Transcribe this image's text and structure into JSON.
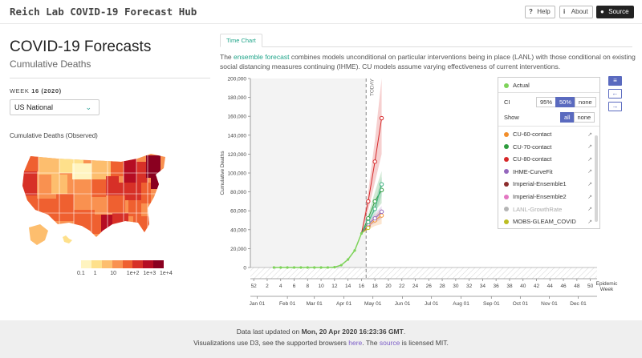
{
  "header": {
    "brand": "Reich Lab COVID-19 Forecast Hub",
    "help_label": "Help",
    "about_label": "About",
    "source_label": "Source",
    "help_icon": "question-icon",
    "about_icon": "info-icon",
    "source_icon": "github-icon"
  },
  "panel": {
    "title": "COVID-19 Forecasts",
    "subtitle": "Cumulative Deaths",
    "week_prefix": "WEEK",
    "week_number": "16",
    "week_year": "(2020)",
    "region_value": "US National",
    "map_title": "Cumulative Deaths (Observed)",
    "color_scale_labels": [
      "0.1",
      "1",
      "10",
      "1e+2",
      "1e+3",
      "1e+4"
    ],
    "color_scale_colors": [
      "#fff4c0",
      "#fee08b",
      "#fdbe6e",
      "#f99150",
      "#ef6030",
      "#d73027",
      "#b50d23",
      "#8a0020"
    ]
  },
  "tabs": [
    {
      "label": "Time Chart"
    }
  ],
  "description": {
    "pre": "The ",
    "link": "ensemble forecast",
    "post": " combines models unconditional on particular interventions being in place (LANL) with those conditional on existing social distancing measures continuing (IHME). CU models assume varying effectiveness of current interventions."
  },
  "legend": {
    "actual_label": "Actual",
    "actual_color": "#7ed35a",
    "ci_label": "CI",
    "ci_options": [
      "95%",
      "50%",
      "none"
    ],
    "ci_selected": "50%",
    "show_label": "Show",
    "show_options": [
      "all",
      "none"
    ],
    "show_selected": "all",
    "models": [
      {
        "name": "CU-60-contact",
        "color": "#f28e2b",
        "muted": false
      },
      {
        "name": "CU-70-contact",
        "color": "#2e9c3e",
        "muted": false
      },
      {
        "name": "CU-80-contact",
        "color": "#d62728",
        "muted": false
      },
      {
        "name": "IHME-CurveFit",
        "color": "#9467bd",
        "muted": false
      },
      {
        "name": "Imperial-Ensemble1",
        "color": "#8c2d2d",
        "muted": false
      },
      {
        "name": "Imperial-Ensemble2",
        "color": "#e377c2",
        "muted": false
      },
      {
        "name": "LANL-GrowthRate",
        "color": "#b5b5b5",
        "muted": true
      },
      {
        "name": "MOBS-GLEAM_COVID",
        "color": "#bcbd22",
        "muted": false
      }
    ]
  },
  "chart_data": {
    "type": "line",
    "ylabel": "Cumulative Deaths",
    "xlabel": "Epidemic Week",
    "today_label": "TODAY",
    "y_ticks": [
      0,
      20000,
      40000,
      60000,
      80000,
      100000,
      120000,
      140000,
      160000,
      180000,
      200000
    ],
    "y_tick_labels": [
      "0",
      "20,000",
      "40,000",
      "60,000",
      "80,000",
      "100,000",
      "120,000",
      "140,000",
      "160,000",
      "180,000",
      "200,000"
    ],
    "ylim": [
      0,
      200000
    ],
    "week_ticks": [
      "52",
      "2",
      "4",
      "6",
      "8",
      "10",
      "12",
      "14",
      "16",
      "18",
      "20",
      "22",
      "24",
      "26",
      "28",
      "30",
      "32",
      "34",
      "36",
      "38",
      "40",
      "42",
      "44",
      "46",
      "48",
      "50"
    ],
    "month_labels": [
      "Jan 01",
      "Feb 01",
      "Mar 01",
      "Apr 01",
      "May 01",
      "Jun 01",
      "Jul 01",
      "Aug 01",
      "Sep 01",
      "Oct 01",
      "Nov 01",
      "Dec 01"
    ],
    "month_positions": [
      0.5,
      5,
      9,
      13.4,
      17.7,
      22.1,
      26.4,
      30.8,
      35.3,
      39.6,
      43.9,
      48.2
    ],
    "xlim": [
      -0.5,
      51
    ],
    "today_week": 16.7,
    "actual": {
      "weeks": [
        3,
        4,
        5,
        6,
        7,
        8,
        9,
        10,
        11,
        12,
        13,
        14,
        15,
        16
      ],
      "values": [
        0,
        0,
        0,
        0,
        0,
        0,
        0,
        0,
        50,
        300,
        2500,
        8500,
        18000,
        36000
      ]
    },
    "forecasts": [
      {
        "model": "CU-80-contact",
        "weeks": [
          16,
          17,
          18,
          19
        ],
        "values": [
          36000,
          70000,
          112000,
          158000
        ],
        "lower": [
          36000,
          60000,
          90000,
          120000
        ],
        "upper": [
          36000,
          80000,
          135000,
          200000
        ]
      },
      {
        "model": "CU-70-contact",
        "weeks": [
          16,
          17,
          18,
          19
        ],
        "values": [
          36000,
          52000,
          70000,
          82000
        ],
        "lower": [
          36000,
          48000,
          60000,
          68000
        ],
        "upper": [
          36000,
          56000,
          80000,
          102000
        ]
      },
      {
        "model": "CU-60-contact",
        "weeks": [
          16,
          17,
          18,
          19
        ],
        "values": [
          36000,
          44000,
          50000,
          55000
        ],
        "lower": [
          36000,
          40000,
          44000,
          46000
        ],
        "upper": [
          36000,
          47000,
          55000,
          62000
        ]
      },
      {
        "model": "IHME-CurveFit",
        "weeks": [
          16,
          17,
          18,
          19
        ],
        "values": [
          36000,
          46000,
          52000,
          59000
        ],
        "lower": [
          36000,
          43000,
          47000,
          52000
        ],
        "upper": [
          36000,
          49000,
          57000,
          65000
        ]
      },
      {
        "model": "Imperial-Ensemble1",
        "weeks": [
          16,
          17
        ],
        "values": [
          36000,
          44000
        ],
        "lower": [
          36000,
          42000
        ],
        "upper": [
          36000,
          46000
        ]
      },
      {
        "model": "Imperial-Ensemble2",
        "weeks": [
          16,
          17
        ],
        "values": [
          36000,
          46000
        ],
        "lower": [
          36000,
          44000
        ],
        "upper": [
          36000,
          48000
        ]
      },
      {
        "model": "MOBS-GLEAM_COVID",
        "weeks": [
          16,
          17
        ],
        "values": [
          36000,
          42000
        ],
        "lower": [
          36000,
          40000
        ],
        "upper": [
          36000,
          44000
        ]
      },
      {
        "model": "Ensemble",
        "weeks": [
          16,
          17,
          18,
          19
        ],
        "values": [
          36000,
          48000,
          62000,
          88000
        ],
        "lower": [
          36000,
          46000,
          56000,
          76000
        ],
        "upper": [
          36000,
          50000,
          68000,
          96000
        ]
      }
    ]
  },
  "footer": {
    "updated_prefix": "Data last updated on ",
    "updated_value": "Mon, 20 Apr 2020 16:23:36 GMT",
    "updated_suffix": ".",
    "line2_a": "Visualizations use D3, see the supported browsers ",
    "line2_here": "here",
    "line2_b": ". The ",
    "line2_source": "source",
    "line2_c": " is licensed MIT."
  }
}
